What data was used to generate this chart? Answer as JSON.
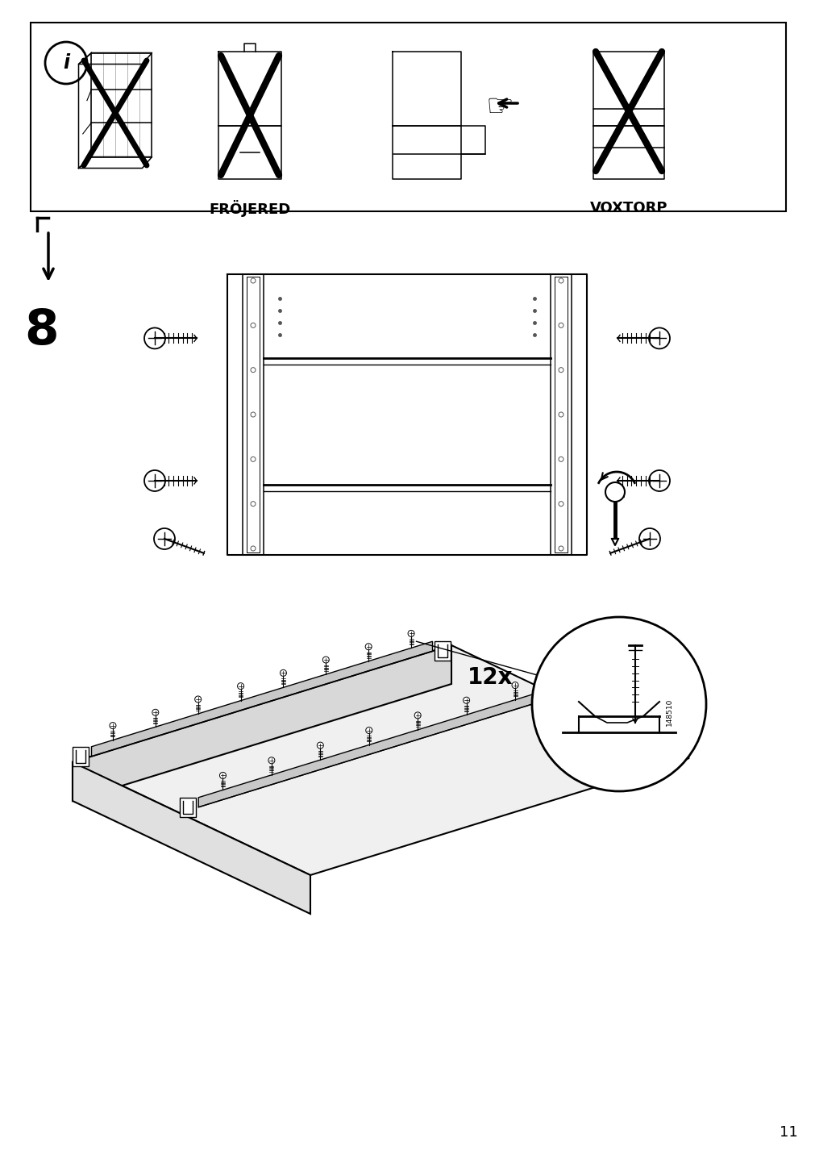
{
  "page_number": "11",
  "background_color": "#ffffff",
  "line_color": "#000000",
  "info_labels": [
    "FRÖJERED",
    "VOXTORP"
  ],
  "step_number": "8",
  "quantity_label": "12x",
  "part_number": "148510"
}
